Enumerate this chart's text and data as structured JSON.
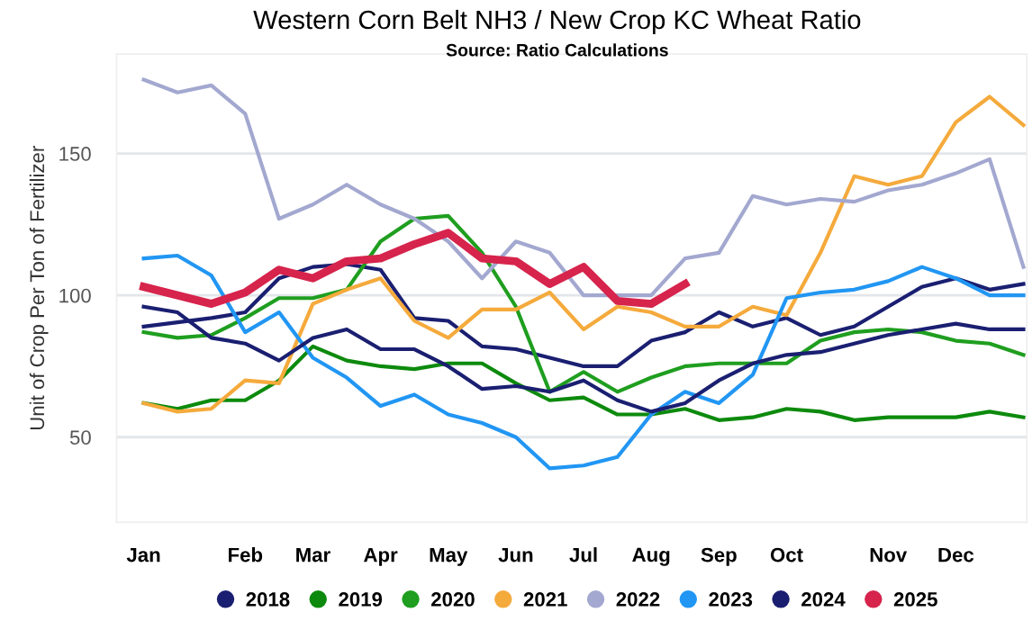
{
  "chart_data": {
    "type": "line",
    "title": "Western Corn Belt NH3 / New Crop KC Wheat Ratio",
    "subtitle": "Source: Ratio Calculations",
    "ylabel": "Unit of Crop Per Ton of Fertilizer",
    "categories": [
      "Jan",
      null,
      null,
      "Feb",
      null,
      "Mar",
      null,
      "Apr",
      null,
      "May",
      null,
      "Jun",
      null,
      "Jul",
      null,
      "Aug",
      null,
      "Sep",
      null,
      "Oct",
      null,
      null,
      "Nov",
      null,
      "Dec",
      null,
      null
    ],
    "ylim": [
      20,
      185
    ],
    "yticks": [
      50,
      100,
      150
    ],
    "grid": "y",
    "legend": "bottom",
    "marker": "none",
    "line_style": "solid",
    "series": [
      {
        "name": "2018",
        "color": "#1a1f71",
        "values": [
          89,
          90.5,
          92,
          94,
          106,
          110,
          111,
          109,
          92,
          91,
          82,
          81,
          78,
          75,
          75,
          84,
          87,
          94,
          89,
          92,
          86,
          89,
          96,
          103,
          106,
          102,
          104
        ]
      },
      {
        "name": "2019",
        "color": "#0d8a0d",
        "values": [
          62,
          60,
          63,
          63,
          70,
          82,
          77,
          75,
          74,
          76,
          76,
          69,
          63,
          64,
          58,
          58,
          60,
          56,
          57,
          60,
          59,
          56,
          57,
          57,
          57,
          59,
          57
        ]
      },
      {
        "name": "2020",
        "color": "#1f9e1f",
        "values": [
          87,
          85,
          86,
          92,
          99,
          99,
          102,
          119,
          127,
          128,
          115,
          96,
          66,
          73,
          66,
          71,
          75,
          76,
          76,
          76,
          84,
          87,
          88,
          87,
          84,
          83,
          79
        ]
      },
      {
        "name": "2021",
        "color": "#f5aa3c",
        "values": [
          62,
          59,
          60,
          70,
          69,
          97,
          102,
          106,
          91,
          85,
          95,
          95,
          101,
          88,
          96,
          94,
          89,
          89,
          96,
          93,
          115,
          142,
          139,
          142,
          161,
          170,
          160
        ]
      },
      {
        "name": "2022",
        "color": "#a3a8d0",
        "values": [
          176,
          171.5,
          174,
          164,
          127,
          132,
          139,
          132,
          127,
          119,
          106,
          119,
          115,
          100,
          100,
          100,
          113,
          115,
          135,
          132,
          134,
          133,
          137,
          139,
          143,
          148,
          110
        ]
      },
      {
        "name": "2023",
        "color": "#2196f3",
        "values": [
          113,
          114,
          107,
          87,
          94,
          78,
          71,
          61,
          65,
          58,
          55,
          50,
          39,
          40,
          43,
          58,
          66,
          62,
          72,
          99,
          101,
          102,
          105,
          110,
          106,
          100,
          100
        ]
      },
      {
        "name": "2024",
        "color": "#1a1f71",
        "values": [
          96,
          94,
          85,
          83,
          77,
          85,
          88,
          81,
          81,
          75,
          67,
          68,
          66,
          70,
          63,
          59,
          62,
          70,
          76,
          79,
          80,
          83,
          86,
          88,
          90,
          88,
          88
        ]
      },
      {
        "name": "2025",
        "color": "#d6244c",
        "values": [
          103,
          100,
          97,
          101,
          109,
          106,
          112,
          113,
          118,
          122,
          113,
          112,
          104,
          110,
          98,
          97,
          104,
          null,
          null,
          null,
          null,
          null,
          null,
          null,
          null,
          null,
          null
        ]
      }
    ]
  }
}
